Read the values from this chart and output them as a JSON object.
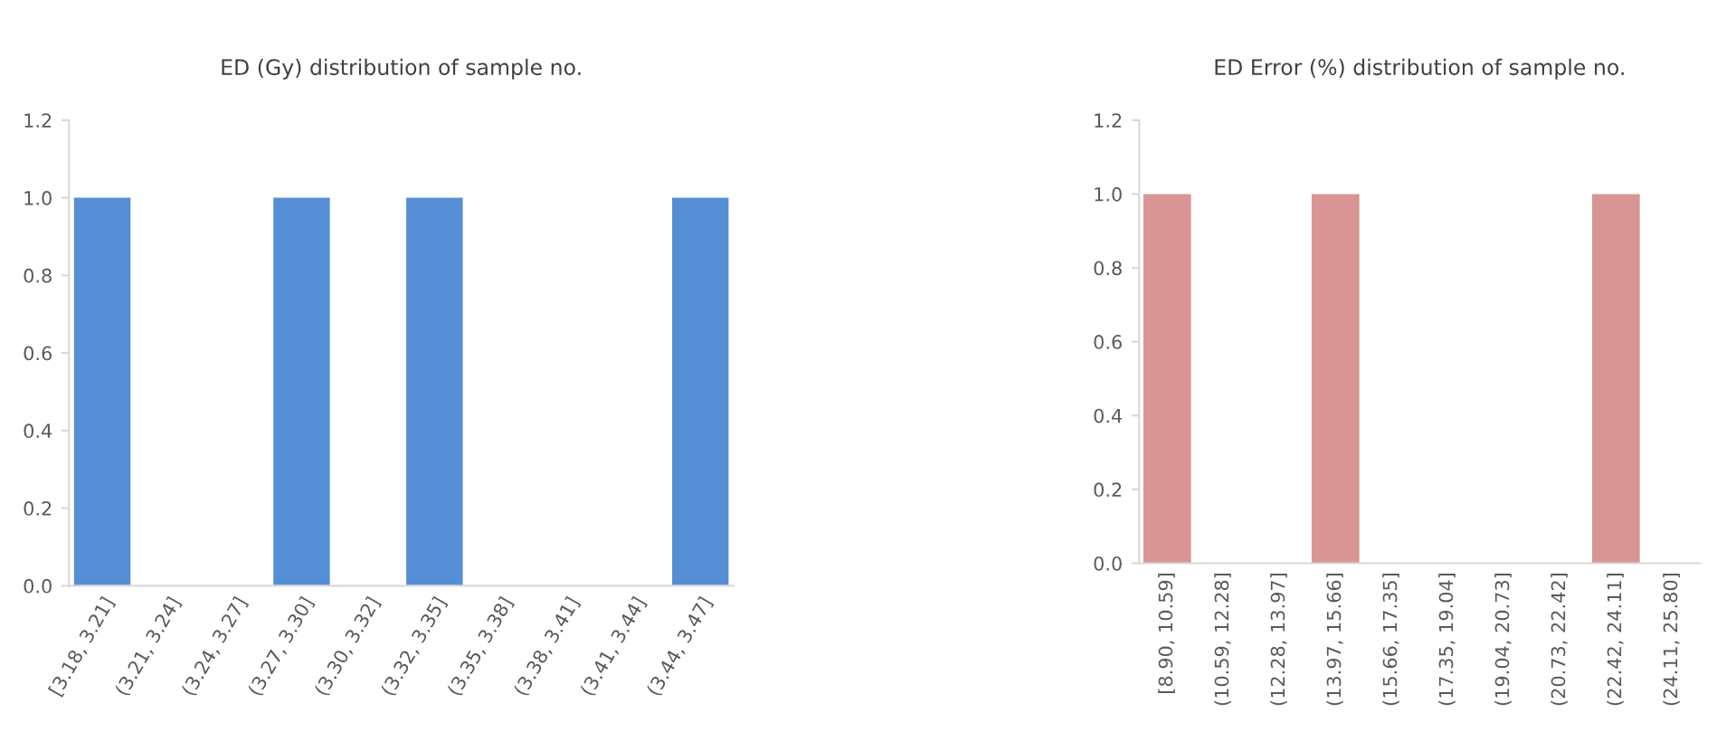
{
  "chart_data": [
    {
      "type": "bar",
      "title": "ED (Gy) distribution of sample no.",
      "categories": [
        "[3.18, 3.21]",
        "(3.21, 3.24]",
        "(3.24, 3.27]",
        "(3.27, 3.30]",
        "(3.30, 3.32]",
        "(3.32, 3.35]",
        "(3.35, 3.38]",
        "(3.38, 3.41]",
        "(3.41, 3.44]",
        "(3.44, 3.47]"
      ],
      "values": [
        1,
        0,
        0,
        1,
        0,
        1,
        0,
        0,
        0,
        1
      ],
      "color": "#558ed5",
      "ylim": [
        0,
        1.2
      ],
      "yticks": [
        {
          "value": 0,
          "label": "0.0"
        },
        {
          "value": 0.2,
          "label": "0.2"
        },
        {
          "value": 0.4,
          "label": "0.4"
        },
        {
          "value": 0.6,
          "label": "0.6"
        },
        {
          "value": 0.8,
          "label": "0.8"
        },
        {
          "value": 1.0,
          "label": "1.0"
        },
        {
          "value": 1.2,
          "label": "1.2"
        }
      ],
      "grid": false
    },
    {
      "type": "bar",
      "title": "ED Error (%) distribution of sample no.",
      "categories": [
        "[8.90, 10.59]",
        "(10.59, 12.28]",
        "(12.28, 13.97]",
        "(13.97, 15.66]",
        "(15.66, 17.35]",
        "(17.35, 19.04]",
        "(19.04, 20.73]",
        "(20.73, 22.42]",
        "(22.42, 24.11]",
        "(24.11, 25.80]"
      ],
      "values": [
        1,
        0,
        0,
        1,
        0,
        0,
        0,
        0,
        1,
        null
      ],
      "color": "#d99594",
      "ylim": [
        0,
        1.2
      ],
      "yticks": [
        {
          "value": 0,
          "label": "0.0"
        },
        {
          "value": 0.2,
          "label": "0.2"
        },
        {
          "value": 0.4,
          "label": "0.4"
        },
        {
          "value": 0.6,
          "label": "0.6"
        },
        {
          "value": 0.8,
          "label": "0.8"
        },
        {
          "value": 1.0,
          "label": "1.0"
        },
        {
          "value": 1.2,
          "label": "1.2"
        }
      ],
      "grid": false
    }
  ]
}
